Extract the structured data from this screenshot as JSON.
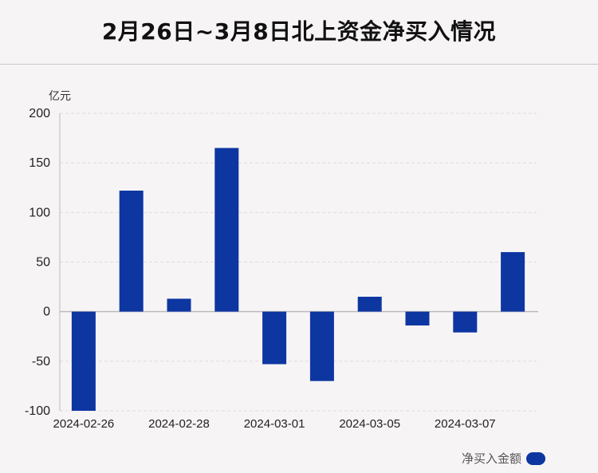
{
  "title": "2月26日~3月8日北上资金净买入情况",
  "colors": {
    "bar": "#0d36a1",
    "grid": "#dedbdd",
    "axis": "#bdbabc"
  },
  "chart_data": {
    "type": "bar",
    "title": "2月26日~3月8日北上资金净买入情况",
    "unit": "亿元",
    "ylim": [
      -100,
      200
    ],
    "yticks": [
      -100,
      -50,
      0,
      50,
      100,
      150,
      200
    ],
    "tick_labels": [
      "2024-02-26",
      "2024-02-28",
      "2024-03-01",
      "2024-03-05",
      "2024-03-07"
    ],
    "series": [
      {
        "name": "净买入金额",
        "values": [
          -100,
          122,
          13,
          165,
          -53,
          -70,
          15,
          -14,
          -21,
          60
        ]
      }
    ],
    "grid": true,
    "legend_position": "bottom-right"
  },
  "legend": {
    "label": "净买入金额"
  }
}
